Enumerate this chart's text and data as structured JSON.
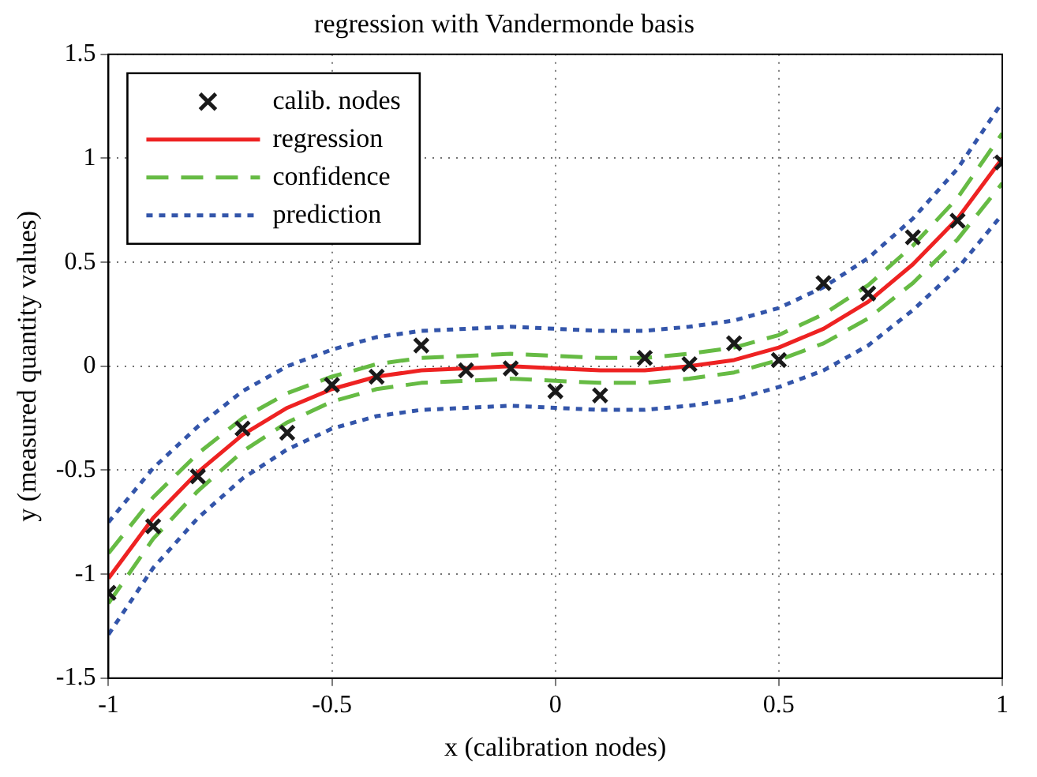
{
  "chart_data": {
    "type": "line",
    "title": "regression with Vandermonde basis",
    "xlabel": "x (calibration nodes)",
    "ylabel": "y (measured quantity values)",
    "x": [
      -1,
      -0.9,
      -0.8,
      -0.7,
      -0.6,
      -0.5,
      -0.4,
      -0.3,
      -0.2,
      -0.1,
      0,
      0.1,
      0.2,
      0.3,
      0.4,
      0.5,
      0.6,
      0.7,
      0.8,
      0.9,
      1
    ],
    "xlim": [
      -1,
      1
    ],
    "ylim": [
      -1.5,
      1.5
    ],
    "xticks": [
      -1,
      -0.5,
      0,
      0.5,
      1
    ],
    "yticks": [
      -1.5,
      -1,
      -0.5,
      0,
      0.5,
      1,
      1.5
    ],
    "grid": true,
    "legend": "top left",
    "series": [
      {
        "name": "calib. nodes",
        "type": "scatter",
        "marker": "cross",
        "color": "#1a1a1a",
        "values": [
          -1.09,
          -0.77,
          -0.53,
          -0.3,
          -0.32,
          -0.09,
          -0.05,
          0.1,
          -0.02,
          -0.01,
          -0.12,
          -0.14,
          0.04,
          0.01,
          0.11,
          0.03,
          0.4,
          0.35,
          0.62,
          0.7,
          0.98
        ]
      },
      {
        "name": "regression",
        "line_style": "solid",
        "color": "#ee2222",
        "values": [
          -1.02,
          -0.73,
          -0.51,
          -0.33,
          -0.2,
          -0.11,
          -0.05,
          -0.02,
          -0.01,
          0,
          -0.01,
          -0.02,
          -0.02,
          0,
          0.03,
          0.09,
          0.18,
          0.31,
          0.49,
          0.71,
          1.0
        ]
      },
      {
        "name": "confidence",
        "line_style": "dashed",
        "color": "#66bb44",
        "values": [
          -0.9,
          -0.63,
          -0.42,
          -0.25,
          -0.13,
          -0.05,
          0.01,
          0.04,
          0.05,
          0.06,
          0.05,
          0.04,
          0.04,
          0.06,
          0.09,
          0.15,
          0.25,
          0.39,
          0.58,
          0.81,
          1.12
        ]
      },
      {
        "line_style": "dashed",
        "color": "#66bb44",
        "values": [
          -1.14,
          -0.83,
          -0.6,
          -0.41,
          -0.27,
          -0.17,
          -0.11,
          -0.08,
          -0.07,
          -0.06,
          -0.07,
          -0.08,
          -0.08,
          -0.06,
          -0.03,
          0.03,
          0.11,
          0.23,
          0.4,
          0.61,
          0.88
        ]
      },
      {
        "name": "prediction",
        "line_style": "dotted",
        "color": "#3355aa",
        "values": [
          -0.75,
          -0.49,
          -0.29,
          -0.12,
          0,
          0.08,
          0.14,
          0.17,
          0.18,
          0.19,
          0.18,
          0.17,
          0.17,
          0.19,
          0.22,
          0.28,
          0.38,
          0.52,
          0.71,
          0.95,
          1.27
        ]
      },
      {
        "line_style": "dotted",
        "color": "#3355aa",
        "values": [
          -1.29,
          -0.97,
          -0.73,
          -0.54,
          -0.4,
          -0.3,
          -0.24,
          -0.21,
          -0.2,
          -0.19,
          -0.2,
          -0.21,
          -0.21,
          -0.19,
          -0.16,
          -0.1,
          -0.02,
          0.1,
          0.27,
          0.47,
          0.73
        ]
      }
    ]
  }
}
